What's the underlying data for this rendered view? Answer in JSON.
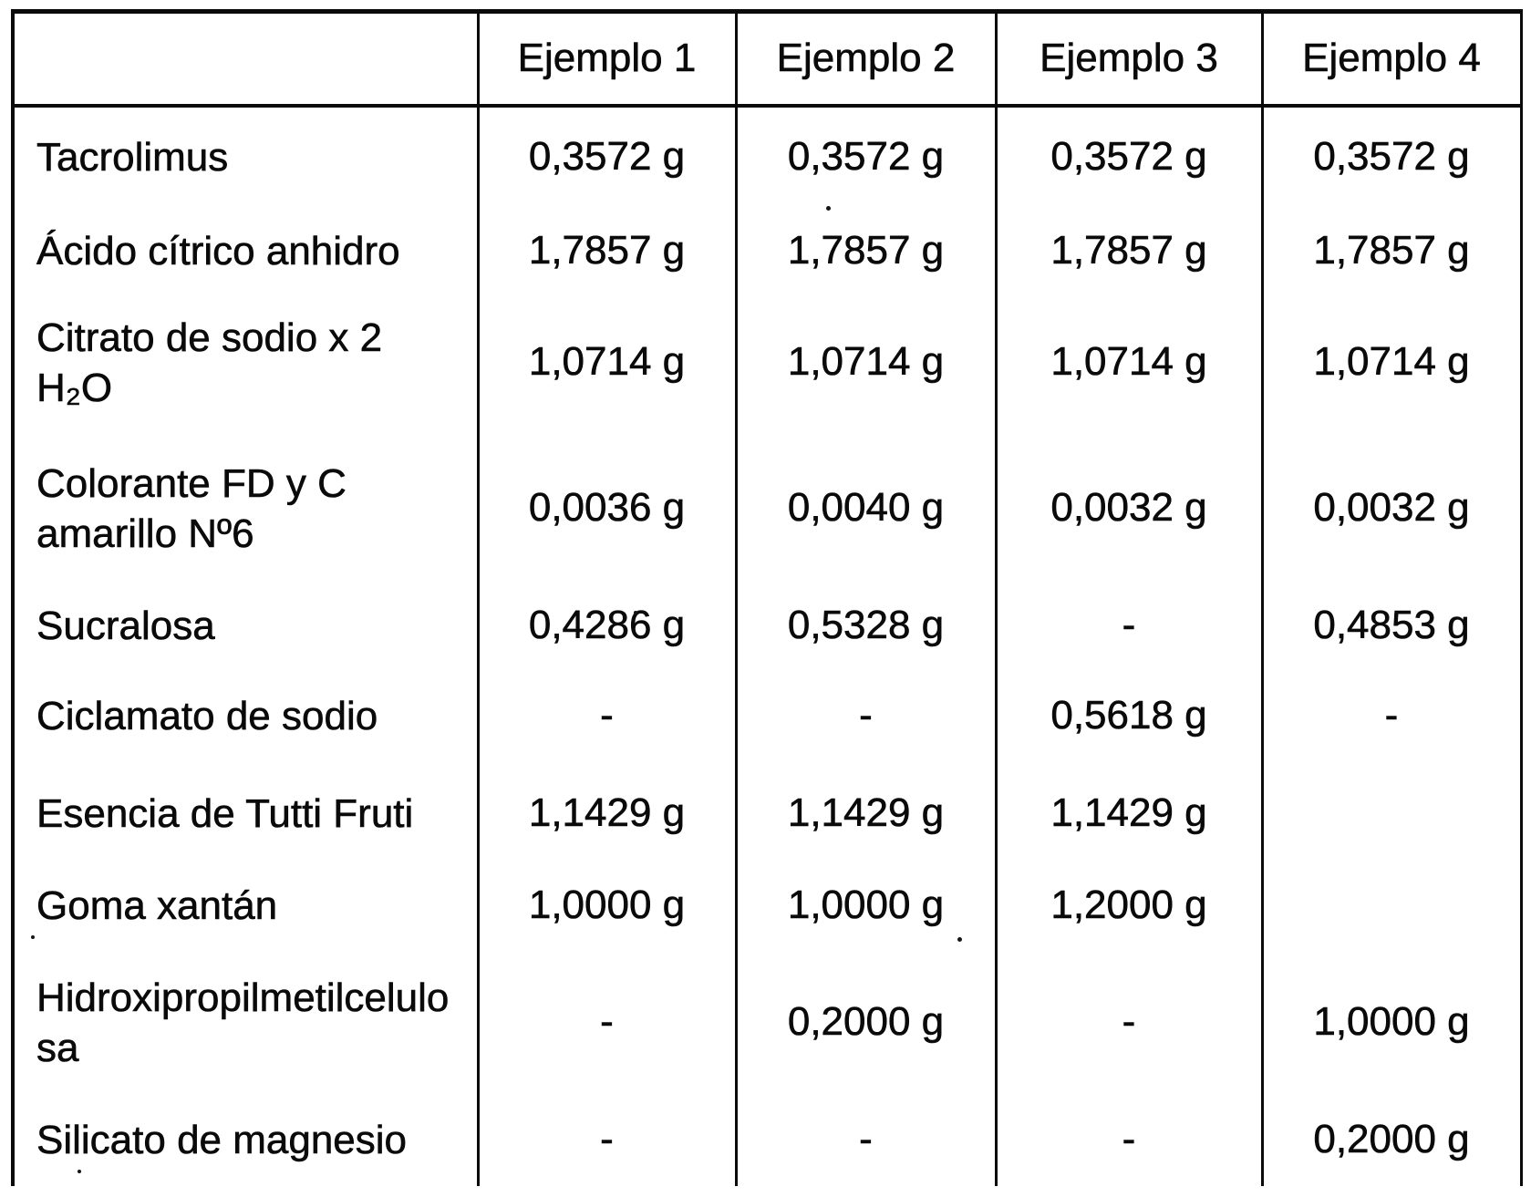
{
  "colors": {
    "ink": "#0a0a0a",
    "paper": "#ffffff"
  },
  "table": {
    "column_headers": [
      "",
      "Ejemplo 1",
      "Ejemplo 2",
      "Ejemplo 3",
      "Ejemplo 4"
    ],
    "rows": [
      {
        "ingredient": "Tacrolimus",
        "values": [
          "0,3572 g",
          "0,3572 g",
          "0,3572 g",
          "0,3572 g"
        ]
      },
      {
        "ingredient": "Ácido cítrico anhidro",
        "values": [
          "1,7857 g",
          "1,7857 g",
          "1,7857 g",
          "1,7857 g"
        ]
      },
      {
        "ingredient": "Citrato de sodio x 2\nH₂O",
        "values": [
          "1,0714 g",
          "1,0714 g",
          "1,0714 g",
          "1,0714 g"
        ]
      },
      {
        "ingredient": "Colorante FD y C\namarillo Nº6",
        "values": [
          "0,0036 g",
          "0,0040 g",
          "0,0032 g",
          "0,0032 g"
        ]
      },
      {
        "ingredient": "Sucralosa",
        "values": [
          "0,4286 g",
          "0,5328 g",
          "-",
          "0,4853 g"
        ]
      },
      {
        "ingredient": "Ciclamato de sodio",
        "values": [
          "-",
          "-",
          "0,5618 g",
          "-"
        ]
      },
      {
        "ingredient": "Esencia de Tutti Fruti",
        "values": [
          "1,1429 g",
          "1,1429 g",
          "1,1429 g",
          ""
        ]
      },
      {
        "ingredient": "Goma xantán",
        "values": [
          "1,0000 g",
          "1,0000 g",
          "1,2000 g",
          ""
        ]
      },
      {
        "ingredient": "Hidroxipropilmetilcelulo\nsa",
        "values": [
          "-",
          "0,2000 g",
          "-",
          "1,0000 g"
        ]
      },
      {
        "ingredient": "Silicato de magnesio",
        "values": [
          "-",
          "-",
          "-",
          "0,2000 g"
        ]
      }
    ]
  }
}
